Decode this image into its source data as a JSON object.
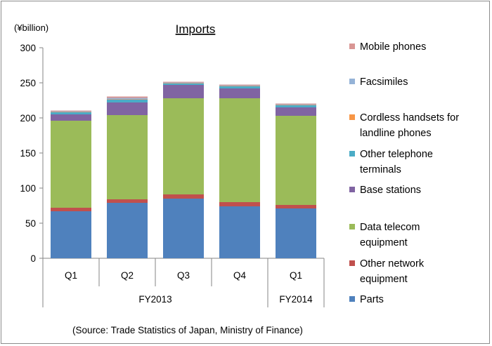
{
  "chart_data": {
    "type": "bar",
    "stacked": true,
    "title": "Imports",
    "unit_label": "(¥billion)",
    "source": "(Source: Trade Statistics of Japan, Ministry of Finance)",
    "categories": [
      "Q1",
      "Q2",
      "Q3",
      "Q4",
      "Q1"
    ],
    "groups": [
      {
        "label": "FY2013",
        "span": 4
      },
      {
        "label": "FY2014",
        "span": 1
      }
    ],
    "ylim": [
      0,
      300
    ],
    "yticks": [
      0,
      50,
      100,
      150,
      200,
      250,
      300
    ],
    "grid": false,
    "legend_position": "right",
    "series": [
      {
        "name": "Parts",
        "color": "#4f81bd",
        "values": [
          67,
          79,
          85,
          74,
          71
        ]
      },
      {
        "name": "Other network equipment",
        "color": "#c0504d",
        "values": [
          5,
          5,
          6,
          6,
          5
        ]
      },
      {
        "name": "Data telecom equipment",
        "color": "#9bbb59",
        "values": [
          124,
          120,
          137,
          148,
          127
        ]
      },
      {
        "name": "Base stations",
        "color": "#8064a2",
        "values": [
          9,
          18,
          19,
          14,
          12
        ]
      },
      {
        "name": "Other telephone terminals",
        "color": "#4bacc6",
        "values": [
          3,
          4,
          2,
          3,
          3
        ]
      },
      {
        "name": "Cordless handsets for landline phones",
        "color": "#f79646",
        "values": [
          0.5,
          0.5,
          0.5,
          0.5,
          0.5
        ]
      },
      {
        "name": "Facsimiles",
        "color": "#95b3d7",
        "values": [
          1,
          2,
          1,
          1,
          1
        ]
      },
      {
        "name": "Mobile phones",
        "color": "#d99694",
        "values": [
          1,
          2,
          1,
          1,
          1
        ]
      }
    ],
    "legend_lines": {
      "Mobile phones": [
        "Mobile phones"
      ],
      "Facsimiles": [
        "Facsimiles"
      ],
      "Cordless handsets for landline phones": [
        "Cordless handsets for",
        "landline phones"
      ],
      "Other telephone terminals": [
        "Other telephone",
        "terminals"
      ],
      "Base stations": [
        "Base stations"
      ],
      "Data telecom equipment": [
        "Data telecom",
        "equipment"
      ],
      "Other network equipment": [
        "Other network",
        "equipment"
      ],
      "Parts": [
        "Parts"
      ]
    }
  }
}
